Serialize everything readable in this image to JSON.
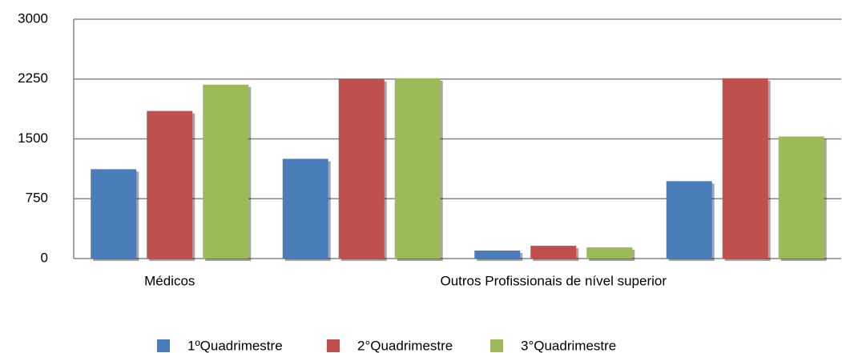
{
  "chart_data": {
    "type": "bar",
    "categories": [
      "Médicos",
      null,
      "Outros Profissionais de nível superior",
      null
    ],
    "series": [
      {
        "name": "1ºQuadrimestre",
        "color": "#4a7ebb",
        "values": [
          1120,
          1250,
          100,
          970
        ]
      },
      {
        "name": "2°Quadrimestre",
        "color": "#c0504d",
        "values": [
          1850,
          2250,
          160,
          2260
        ]
      },
      {
        "name": "3°Quadrimestre",
        "color": "#9bbb59",
        "values": [
          2180,
          2260,
          140,
          1530
        ]
      }
    ],
    "ylim": [
      0,
      3000
    ],
    "yticks": [
      0,
      750,
      1500,
      2250,
      3000
    ],
    "grid": true,
    "legend": "bottom"
  }
}
